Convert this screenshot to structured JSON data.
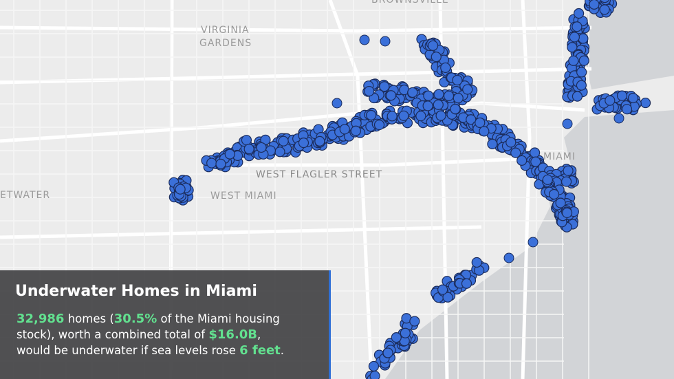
{
  "map_labels": {
    "brownsville": "BROWNSVILLE",
    "virginia_gardens": [
      "VIRGINIA",
      "GARDENS"
    ],
    "sweetwater": "ETWATER",
    "west_miami": "WEST MIAMI",
    "west_flagler": "WEST FLAGLER STREET",
    "miami": "MIAMI"
  },
  "info": {
    "title": "Underwater Homes in Miami",
    "lines": [
      [
        {
          "text": "32,986",
          "highlight": true
        },
        {
          "text": " homes (",
          "highlight": false
        },
        {
          "text": "30.5%",
          "highlight": true
        },
        {
          "text": " of the Miami housing",
          "highlight": false
        }
      ],
      [
        {
          "text": "stock), worth a combined total of ",
          "highlight": false
        },
        {
          "text": "$16.0B",
          "highlight": true
        },
        {
          "text": ",",
          "highlight": false
        }
      ],
      [
        {
          "text": "would be underwater if sea levels rose ",
          "highlight": false
        },
        {
          "text": "6 feet",
          "highlight": true
        },
        {
          "text": ".",
          "highlight": false
        }
      ]
    ]
  }
}
